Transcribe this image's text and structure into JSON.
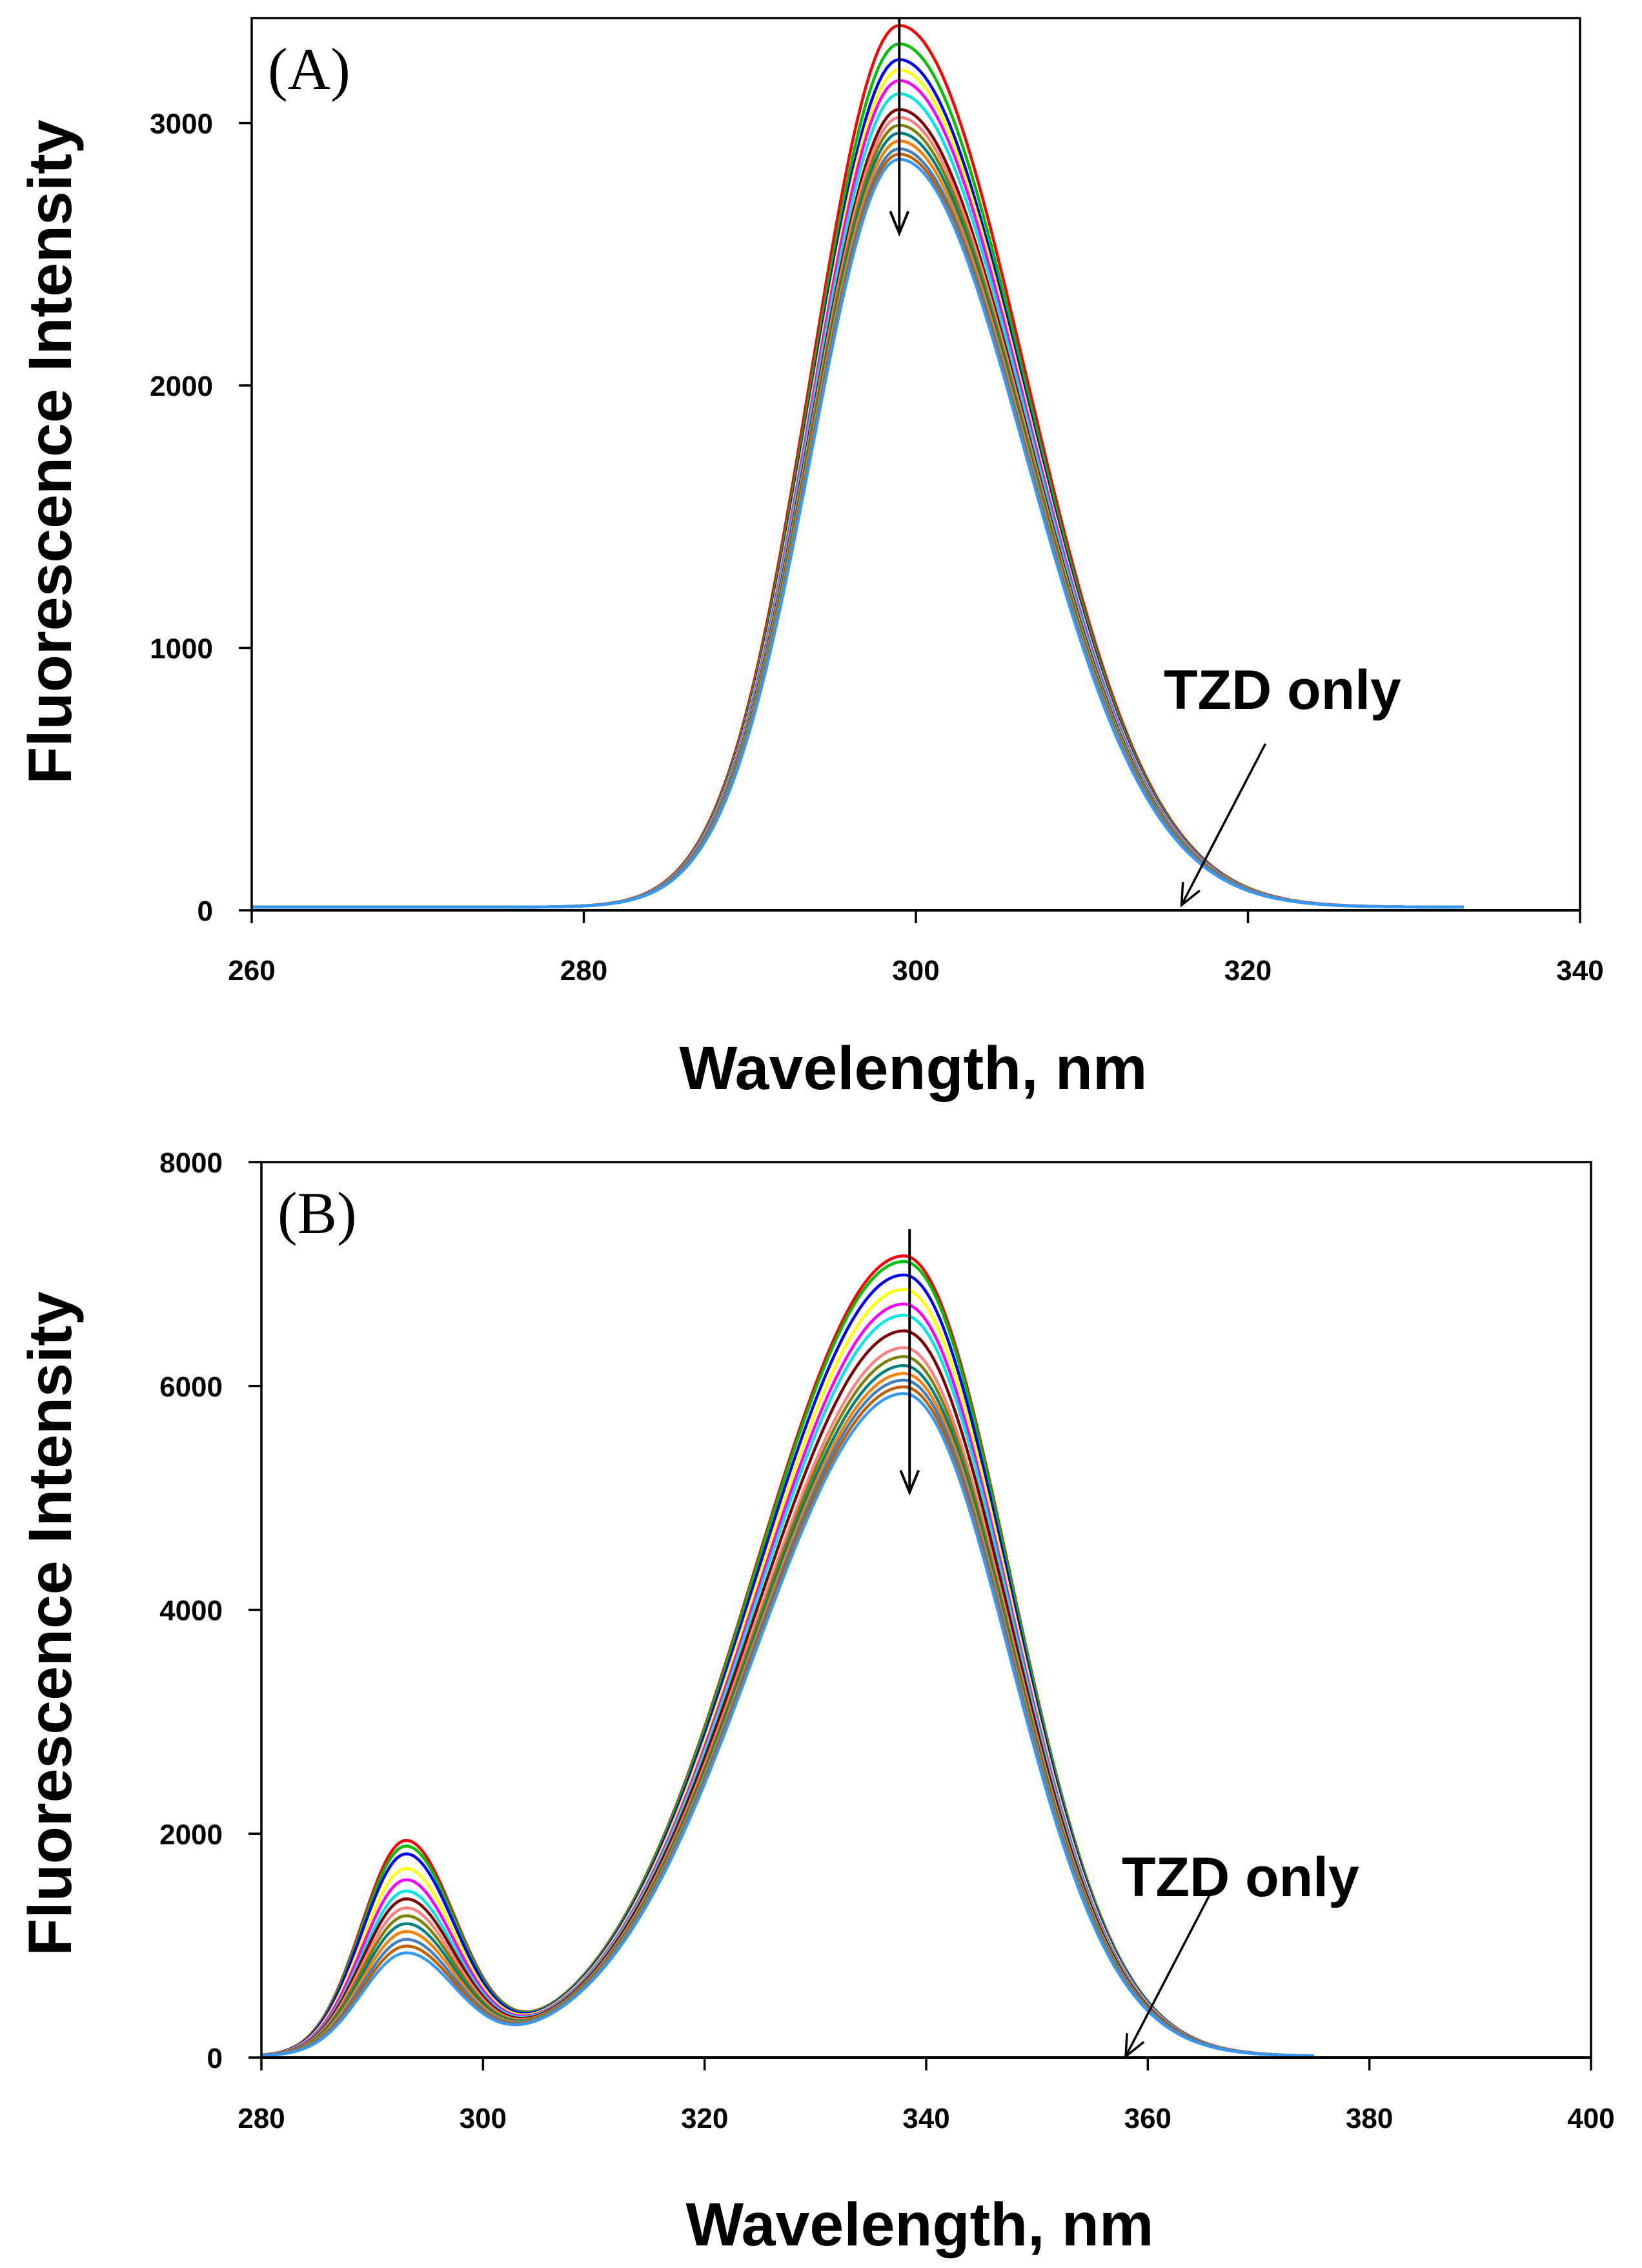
{
  "chart_data": [
    {
      "type": "line",
      "panel_label": "(A)",
      "xlabel": "Wavelength, nm",
      "ylabel": "Fluorescence Intensity",
      "xlim": [
        260,
        340
      ],
      "ylim": [
        0,
        3400
      ],
      "x_ticks": [
        "260",
        "280",
        "300",
        "320",
        "340"
      ],
      "y_ticks": [
        "0",
        "1000",
        "2000",
        "3000"
      ],
      "curve_model": {
        "peaks": [
          {
            "center": 299,
            "width_left": 5.3,
            "width_right": 7.6
          }
        ],
        "x_range": [
          260,
          333
        ]
      },
      "series": [
        {
          "name": "curve 1",
          "color": "#ff0000",
          "peak": 3360
        },
        {
          "name": "curve 2",
          "color": "#00c000",
          "peak": 3290
        },
        {
          "name": "curve 3",
          "color": "#0000ff",
          "peak": 3230
        },
        {
          "name": "curve 4",
          "color": "#ffff00",
          "peak": 3190
        },
        {
          "name": "curve 5",
          "color": "#ff00ff",
          "peak": 3150
        },
        {
          "name": "curve 6",
          "color": "#00e5e5",
          "peak": 3100
        },
        {
          "name": "curve 7",
          "color": "#800000",
          "peak": 3040
        },
        {
          "name": "curve 8",
          "color": "#ff8080",
          "peak": 3010
        },
        {
          "name": "curve 9",
          "color": "#808000",
          "peak": 2980
        },
        {
          "name": "curve 10",
          "color": "#008080",
          "peak": 2950
        },
        {
          "name": "curve 11",
          "color": "#ff8000",
          "peak": 2920
        },
        {
          "name": "curve 12",
          "color": "#4080c0",
          "peak": 2890
        },
        {
          "name": "curve 13",
          "color": "#c06000",
          "peak": 2870
        },
        {
          "name": "curve 14",
          "color": "#3399ff",
          "peak": 2850
        }
      ],
      "baseline": {
        "name": "TZD only",
        "value": 0
      },
      "annotations": [
        {
          "text": "TZD only",
          "arrow_to": [
            316,
            20
          ]
        }
      ],
      "trend_arrow": {
        "x": 299,
        "from": 3400,
        "to": 2580
      }
    },
    {
      "type": "line",
      "panel_label": "(B)",
      "xlabel": "Wavelength, nm",
      "ylabel": "Fluorescence Intensity",
      "xlim": [
        280,
        400
      ],
      "ylim": [
        0,
        8000
      ],
      "x_ticks": [
        "280",
        "300",
        "320",
        "340",
        "360",
        "380",
        "400"
      ],
      "y_ticks": [
        "0",
        "2000",
        "4000",
        "6000",
        "8000"
      ],
      "curve_model": {
        "peaks": [
          {
            "center": 293,
            "width_left": 4.0,
            "width_right": 4.5
          },
          {
            "center": 338,
            "width_left": 13.5,
            "width_right": 9.5
          }
        ],
        "x_range": [
          280,
          375
        ]
      },
      "series": [
        {
          "name": "curve 1",
          "color": "#ff0000",
          "peak": 7150,
          "peak2": 1900
        },
        {
          "name": "curve 2",
          "color": "#00c000",
          "peak": 7100,
          "peak2": 1850
        },
        {
          "name": "curve 3",
          "color": "#0000ff",
          "peak": 6980,
          "peak2": 1780
        },
        {
          "name": "curve 4",
          "color": "#ffff00",
          "peak": 6850,
          "peak2": 1650
        },
        {
          "name": "curve 5",
          "color": "#ff00ff",
          "peak": 6720,
          "peak2": 1550
        },
        {
          "name": "curve 6",
          "color": "#00e5e5",
          "peak": 6620,
          "peak2": 1450
        },
        {
          "name": "curve 7",
          "color": "#800000",
          "peak": 6480,
          "peak2": 1380
        },
        {
          "name": "curve 8",
          "color": "#ff8080",
          "peak": 6330,
          "peak2": 1300
        },
        {
          "name": "curve 9",
          "color": "#808000",
          "peak": 6250,
          "peak2": 1230
        },
        {
          "name": "curve 10",
          "color": "#008080",
          "peak": 6170,
          "peak2": 1160
        },
        {
          "name": "curve 11",
          "color": "#ff8000",
          "peak": 6100,
          "peak2": 1090
        },
        {
          "name": "curve 12",
          "color": "#4080c0",
          "peak": 6040,
          "peak2": 1020
        },
        {
          "name": "curve 13",
          "color": "#c06000",
          "peak": 5980,
          "peak2": 960
        },
        {
          "name": "curve 14",
          "color": "#3399ff",
          "peak": 5920,
          "peak2": 900
        }
      ],
      "baseline": {
        "name": "TZD only",
        "value": 0
      },
      "annotations": [
        {
          "text": "TZD only",
          "arrow_to": [
            358,
            10
          ]
        }
      ],
      "trend_arrow": {
        "x": 338.5,
        "from": 7400,
        "to": 5050
      }
    }
  ]
}
